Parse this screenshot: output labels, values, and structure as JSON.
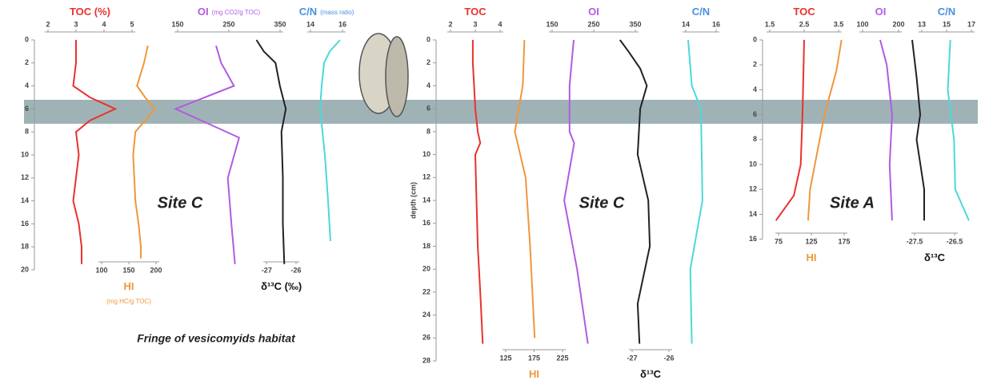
{
  "chart_data": [
    {
      "type": "profile",
      "title": "Site C",
      "caption": "Fringe of vesicomyids habitat",
      "ylim": [
        0,
        20
      ],
      "yticks": [
        0,
        2,
        4,
        6,
        8,
        10,
        12,
        14,
        16,
        18,
        20
      ],
      "series": [
        {
          "name": "TOC (%)",
          "color": "#e8322f",
          "xlim": [
            2,
            5
          ],
          "xticks": [
            2,
            3,
            4,
            5
          ],
          "depth": [
            0,
            2,
            4,
            5,
            6,
            7,
            8,
            10,
            12,
            14,
            16,
            18,
            19.5
          ],
          "values": [
            3.0,
            3.0,
            2.9,
            3.5,
            4.4,
            3.5,
            3.0,
            3.1,
            3.0,
            2.9,
            3.1,
            3.2,
            3.2
          ]
        },
        {
          "name": "HI",
          "unit": "(mg HC/g TOC)",
          "color": "#f0963c",
          "xlim": [
            100,
            200
          ],
          "xticks": [
            100,
            150,
            200
          ],
          "depth": [
            0.5,
            2,
            4,
            5,
            6,
            7,
            8,
            10,
            12,
            14,
            16,
            18,
            19
          ],
          "values": [
            185,
            178,
            165,
            180,
            198,
            180,
            162,
            158,
            160,
            162,
            168,
            172,
            172
          ]
        },
        {
          "name": "OI",
          "unit": "(mg CO2/g TOC)",
          "color": "#b25be0",
          "xlim": [
            100,
            350
          ],
          "xticks": [
            150,
            250,
            350
          ],
          "depth": [
            0.5,
            2,
            4,
            6,
            8.5,
            12,
            16,
            19.5
          ],
          "values": [
            225,
            235,
            260,
            146,
            270,
            248,
            255,
            262
          ]
        },
        {
          "name": "δ¹³C (‰)",
          "color": "#222222",
          "label_color": "#111111",
          "xlim": [
            -27.5,
            -26
          ],
          "xticks": [
            -27,
            -26
          ],
          "depth": [
            0,
            1,
            2,
            4,
            6,
            8,
            12,
            16,
            19.5
          ],
          "values": [
            -27.35,
            -27.1,
            -26.7,
            -26.55,
            -26.35,
            -26.5,
            -26.45,
            -26.45,
            -26.4
          ]
        },
        {
          "name": "C/N",
          "unit": "(mass ratio)",
          "color": "#4ed8d8",
          "label_color": "#4a8fe0",
          "xlim": [
            14,
            16
          ],
          "xticks": [
            14,
            16
          ],
          "depth": [
            0,
            1,
            2,
            4,
            6,
            10,
            14,
            17.5
          ],
          "values": [
            15.85,
            15.2,
            14.85,
            14.7,
            14.6,
            14.9,
            15.1,
            15.25
          ]
        }
      ]
    },
    {
      "type": "profile",
      "title": "Site C",
      "ylabel": "depth (cm)",
      "ylim": [
        0,
        28
      ],
      "yticks": [
        0,
        2,
        4,
        6,
        8,
        10,
        12,
        14,
        16,
        18,
        20,
        22,
        24,
        26,
        28
      ],
      "series": [
        {
          "name": "TOC",
          "color": "#e8322f",
          "xlim": [
            2,
            4
          ],
          "xticks": [
            2,
            3,
            4
          ],
          "depth": [
            0,
            2,
            4,
            6,
            8,
            9,
            10,
            14,
            18,
            22,
            26.5
          ],
          "values": [
            2.9,
            2.9,
            2.95,
            3.0,
            3.1,
            3.2,
            3.0,
            3.05,
            3.1,
            3.2,
            3.3
          ]
        },
        {
          "name": "HI",
          "color": "#f0963c",
          "xlim": [
            125,
            225
          ],
          "xticks": [
            125,
            175,
            225
          ],
          "depth": [
            0,
            4,
            8,
            12,
            18,
            26
          ],
          "values": [
            158,
            155,
            141,
            160,
            168,
            176
          ]
        },
        {
          "name": "OI",
          "color": "#b25be0",
          "xlim": [
            150,
            350
          ],
          "xticks": [
            150,
            250,
            350
          ],
          "depth": [
            0,
            4,
            8,
            9,
            14,
            20,
            26.5
          ],
          "values": [
            202,
            192,
            192,
            203,
            179,
            210,
            236
          ]
        },
        {
          "name": "δ¹³C",
          "color": "#222222",
          "label_color": "#111111",
          "xlim": [
            -27.5,
            -26
          ],
          "xticks": [
            -27,
            -26
          ],
          "depth": [
            0,
            1,
            2.5,
            4,
            6,
            10,
            14,
            18,
            23,
            26.5
          ],
          "values": [
            -27.33,
            -27.1,
            -26.78,
            -26.6,
            -26.78,
            -26.85,
            -26.56,
            -26.52,
            -26.85,
            -26.8
          ]
        },
        {
          "name": "C/N",
          "color": "#4ed8d8",
          "label_color": "#4a8fe0",
          "xlim": [
            14,
            16
          ],
          "xticks": [
            14,
            16
          ],
          "depth": [
            0,
            4,
            6,
            14,
            20,
            26.5
          ],
          "values": [
            14.16,
            14.4,
            15.0,
            15.1,
            14.3,
            14.4
          ]
        }
      ]
    },
    {
      "type": "profile",
      "title": "Site A",
      "ylim": [
        0,
        16
      ],
      "yticks": [
        0,
        2,
        4,
        6,
        8,
        10,
        12,
        14,
        16
      ],
      "series": [
        {
          "name": "TOC",
          "color": "#e8322f",
          "xlim": [
            1.5,
            3.5
          ],
          "xticks": [
            1.5,
            2.5,
            3.5
          ],
          "depth": [
            0,
            6,
            10,
            12.5,
            14.5
          ],
          "values": [
            2.5,
            2.45,
            2.4,
            2.2,
            1.68
          ]
        },
        {
          "name": "HI",
          "color": "#f0963c",
          "xlim": [
            75,
            175
          ],
          "xticks": [
            75,
            125,
            175
          ],
          "depth": [
            0,
            2.5,
            6,
            12,
            14.5
          ],
          "values": [
            171,
            163,
            145,
            123,
            120
          ]
        },
        {
          "name": "OI",
          "color": "#b25be0",
          "xlim": [
            100,
            200
          ],
          "xticks": [
            100,
            200
          ],
          "depth": [
            0,
            2,
            6,
            10,
            14.5
          ],
          "values": [
            149,
            167,
            182,
            175,
            182
          ]
        },
        {
          "name": "δ¹³C",
          "color": "#222222",
          "label_color": "#111111",
          "xlim": [
            -27.6,
            -26.4
          ],
          "xticks": [
            -27.5,
            -26.5
          ],
          "depth": [
            0,
            3,
            6,
            8,
            12,
            14.5
          ],
          "values": [
            -27.56,
            -27.45,
            -27.36,
            -27.45,
            -27.26,
            -27.26
          ]
        },
        {
          "name": "C/N",
          "color": "#4ed8d8",
          "label_color": "#4a8fe0",
          "xlim": [
            13,
            17
          ],
          "xticks": [
            13,
            15,
            17
          ],
          "depth": [
            0,
            4,
            8,
            12,
            14.5
          ],
          "values": [
            15.3,
            15.1,
            15.6,
            15.7,
            16.8
          ]
        }
      ]
    }
  ]
}
